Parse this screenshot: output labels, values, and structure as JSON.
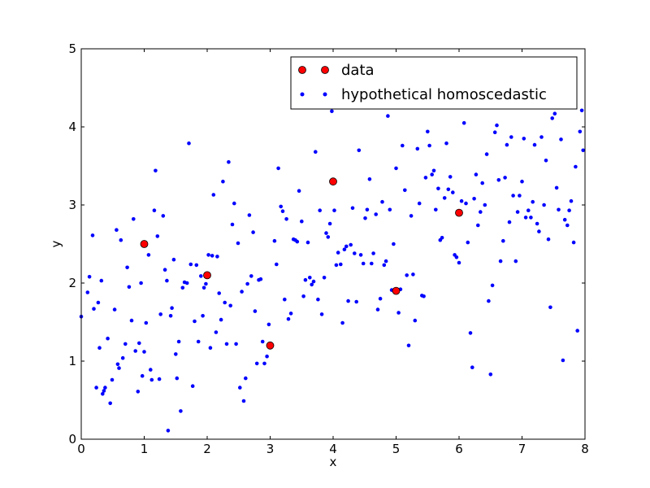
{
  "chart_data": {
    "type": "scatter",
    "xlabel": "x",
    "ylabel": "y",
    "xlim": [
      0,
      8
    ],
    "ylim": [
      0,
      5
    ],
    "xticks": [
      "0",
      "1",
      "2",
      "3",
      "4",
      "5",
      "6",
      "7",
      "8"
    ],
    "yticks": [
      "0",
      "1",
      "2",
      "3",
      "4",
      "5"
    ],
    "grid": false,
    "legend_position": "top-right",
    "series": [
      {
        "name": "data",
        "marker": "circle-large",
        "color": "#ff0000",
        "edge_color": "#000000",
        "points": [
          [
            1,
            2.5
          ],
          [
            2,
            2.1
          ],
          [
            3,
            1.2
          ],
          [
            4,
            3.3
          ],
          [
            5,
            1.9
          ],
          [
            6,
            2.9
          ]
        ]
      },
      {
        "name": "hypothetical homoscedastic",
        "marker": "circle-small",
        "color": "#0000ff",
        "points": [
          [
            0.0,
            1.57
          ],
          [
            0.1,
            1.88
          ],
          [
            0.13,
            2.08
          ],
          [
            0.18,
            2.61
          ],
          [
            0.2,
            1.67
          ],
          [
            0.24,
            0.66
          ],
          [
            0.27,
            1.75
          ],
          [
            0.29,
            1.17
          ],
          [
            0.32,
            2.03
          ],
          [
            0.34,
            0.58
          ],
          [
            0.36,
            0.62
          ],
          [
            0.38,
            0.66
          ],
          [
            0.42,
            1.29
          ],
          [
            0.46,
            0.46
          ],
          [
            0.49,
            0.76
          ],
          [
            0.53,
            1.66
          ],
          [
            0.56,
            2.68
          ],
          [
            0.58,
            0.96
          ],
          [
            0.6,
            0.91
          ],
          [
            0.63,
            2.55
          ],
          [
            0.66,
            1.04
          ],
          [
            0.7,
            1.22
          ],
          [
            0.73,
            2.2
          ],
          [
            0.76,
            1.95
          ],
          [
            0.8,
            1.52
          ],
          [
            0.83,
            2.82
          ],
          [
            0.86,
            1.13
          ],
          [
            0.9,
            0.61
          ],
          [
            0.92,
            1.23
          ],
          [
            0.95,
            2.0
          ],
          [
            0.97,
            0.81
          ],
          [
            1.0,
            1.12
          ],
          [
            1.03,
            1.49
          ],
          [
            1.07,
            2.36
          ],
          [
            1.1,
            0.89
          ],
          [
            1.12,
            0.76
          ],
          [
            1.16,
            2.93
          ],
          [
            1.18,
            3.44
          ],
          [
            1.21,
            2.6
          ],
          [
            1.24,
            0.77
          ],
          [
            1.26,
            1.6
          ],
          [
            1.3,
            2.86
          ],
          [
            1.33,
            2.17
          ],
          [
            1.36,
            2.03
          ],
          [
            1.38,
            0.11
          ],
          [
            1.42,
            1.58
          ],
          [
            1.44,
            1.68
          ],
          [
            1.47,
            2.3
          ],
          [
            1.5,
            1.09
          ],
          [
            1.52,
            0.78
          ],
          [
            1.55,
            1.25
          ],
          [
            1.58,
            0.36
          ],
          [
            1.61,
            1.94
          ],
          [
            1.64,
            2.01
          ],
          [
            1.68,
            2.0
          ],
          [
            1.71,
            3.79
          ],
          [
            1.74,
            2.24
          ],
          [
            1.77,
            0.68
          ],
          [
            1.8,
            1.51
          ],
          [
            1.83,
            2.23
          ],
          [
            1.86,
            1.25
          ],
          [
            1.9,
            2.09
          ],
          [
            1.93,
            1.58
          ],
          [
            1.95,
            1.94
          ],
          [
            1.98,
            1.99
          ],
          [
            2.02,
            2.36
          ],
          [
            2.05,
            1.17
          ],
          [
            2.08,
            2.35
          ],
          [
            2.1,
            3.13
          ],
          [
            2.14,
            1.37
          ],
          [
            2.16,
            2.34
          ],
          [
            2.19,
            1.87
          ],
          [
            2.22,
            1.53
          ],
          [
            2.25,
            3.3
          ],
          [
            2.28,
            1.75
          ],
          [
            2.31,
            1.22
          ],
          [
            2.34,
            3.55
          ],
          [
            2.37,
            1.71
          ],
          [
            2.4,
            2.75
          ],
          [
            2.43,
            3.02
          ],
          [
            2.46,
            1.22
          ],
          [
            2.49,
            2.51
          ],
          [
            2.52,
            0.66
          ],
          [
            2.55,
            1.89
          ],
          [
            2.58,
            0.49
          ],
          [
            2.61,
            0.78
          ],
          [
            2.64,
            1.99
          ],
          [
            2.67,
            2.87
          ],
          [
            2.7,
            2.09
          ],
          [
            2.73,
            2.65
          ],
          [
            2.76,
            1.64
          ],
          [
            2.79,
            0.97
          ],
          [
            2.82,
            2.04
          ],
          [
            2.85,
            2.05
          ],
          [
            2.88,
            1.25
          ],
          [
            2.91,
            0.97
          ],
          [
            2.95,
            1.06
          ],
          [
            2.98,
            1.47
          ],
          [
            3.0,
            1.21
          ],
          [
            3.03,
            1.2
          ],
          [
            3.07,
            2.54
          ],
          [
            3.1,
            2.24
          ],
          [
            3.13,
            3.47
          ],
          [
            3.17,
            2.98
          ],
          [
            3.2,
            2.92
          ],
          [
            3.23,
            1.79
          ],
          [
            3.26,
            2.82
          ],
          [
            3.29,
            1.54
          ],
          [
            3.33,
            1.61
          ],
          [
            3.37,
            2.56
          ],
          [
            3.4,
            2.55
          ],
          [
            3.43,
            2.53
          ],
          [
            3.46,
            3.18
          ],
          [
            3.5,
            2.79
          ],
          [
            3.53,
            1.83
          ],
          [
            3.56,
            2.04
          ],
          [
            3.6,
            2.52
          ],
          [
            3.63,
            2.07
          ],
          [
            3.66,
            1.98
          ],
          [
            3.69,
            2.02
          ],
          [
            3.72,
            3.68
          ],
          [
            3.76,
            1.79
          ],
          [
            3.79,
            2.93
          ],
          [
            3.82,
            1.6
          ],
          [
            3.86,
            2.07
          ],
          [
            3.89,
            2.64
          ],
          [
            3.92,
            2.59
          ],
          [
            3.95,
            2.76
          ],
          [
            3.98,
            4.2
          ],
          [
            4.02,
            2.93
          ],
          [
            4.05,
            2.23
          ],
          [
            4.08,
            2.39
          ],
          [
            4.12,
            2.24
          ],
          [
            4.15,
            1.49
          ],
          [
            4.18,
            2.43
          ],
          [
            4.21,
            2.47
          ],
          [
            4.24,
            1.77
          ],
          [
            4.28,
            2.49
          ],
          [
            4.31,
            2.96
          ],
          [
            4.34,
            2.38
          ],
          [
            4.37,
            1.76
          ],
          [
            4.41,
            3.7
          ],
          [
            4.44,
            2.36
          ],
          [
            4.48,
            2.25
          ],
          [
            4.51,
            2.83
          ],
          [
            4.54,
            2.94
          ],
          [
            4.58,
            3.33
          ],
          [
            4.61,
            2.25
          ],
          [
            4.64,
            2.38
          ],
          [
            4.68,
            2.88
          ],
          [
            4.71,
            1.66
          ],
          [
            4.75,
            1.8
          ],
          [
            4.78,
            3.04
          ],
          [
            4.81,
            2.23
          ],
          [
            4.84,
            2.28
          ],
          [
            4.87,
            4.14
          ],
          [
            4.9,
            2.94
          ],
          [
            4.93,
            1.91
          ],
          [
            4.96,
            2.5
          ],
          [
            5.0,
            3.47
          ],
          [
            5.04,
            1.62
          ],
          [
            5.07,
            1.92
          ],
          [
            5.1,
            3.76
          ],
          [
            5.14,
            3.19
          ],
          [
            5.17,
            2.1
          ],
          [
            5.2,
            1.2
          ],
          [
            5.24,
            2.86
          ],
          [
            5.27,
            2.11
          ],
          [
            5.3,
            1.52
          ],
          [
            5.34,
            3.72
          ],
          [
            5.37,
            3.02
          ],
          [
            5.41,
            1.84
          ],
          [
            5.44,
            1.83
          ],
          [
            5.47,
            3.35
          ],
          [
            5.5,
            3.94
          ],
          [
            5.53,
            3.76
          ],
          [
            5.57,
            3.39
          ],
          [
            5.6,
            3.44
          ],
          [
            5.63,
            2.94
          ],
          [
            5.67,
            3.21
          ],
          [
            5.7,
            2.55
          ],
          [
            5.73,
            2.58
          ],
          [
            5.77,
            3.09
          ],
          [
            5.8,
            3.79
          ],
          [
            5.83,
            3.2
          ],
          [
            5.86,
            3.36
          ],
          [
            5.9,
            3.16
          ],
          [
            5.93,
            2.36
          ],
          [
            5.96,
            2.33
          ],
          [
            6.0,
            2.26
          ],
          [
            6.04,
            3.05
          ],
          [
            6.08,
            4.05
          ],
          [
            6.11,
            3.02
          ],
          [
            6.14,
            2.52
          ],
          [
            6.18,
            1.36
          ],
          [
            6.21,
            0.92
          ],
          [
            6.24,
            3.08
          ],
          [
            6.27,
            3.39
          ],
          [
            6.3,
            2.74
          ],
          [
            6.34,
            2.91
          ],
          [
            6.37,
            3.28
          ],
          [
            6.41,
            3.0
          ],
          [
            6.44,
            3.65
          ],
          [
            6.47,
            1.77
          ],
          [
            6.5,
            0.83
          ],
          [
            6.53,
            1.97
          ],
          [
            6.57,
            3.93
          ],
          [
            6.6,
            4.02
          ],
          [
            6.63,
            3.32
          ],
          [
            6.66,
            2.28
          ],
          [
            6.7,
            2.54
          ],
          [
            6.73,
            3.35
          ],
          [
            6.76,
            3.77
          ],
          [
            6.8,
            2.78
          ],
          [
            6.83,
            3.87
          ],
          [
            6.86,
            3.12
          ],
          [
            6.9,
            2.28
          ],
          [
            6.93,
            2.91
          ],
          [
            6.96,
            3.12
          ],
          [
            7.0,
            3.3
          ],
          [
            7.03,
            3.85
          ],
          [
            7.06,
            2.84
          ],
          [
            7.1,
            2.93
          ],
          [
            7.14,
            2.84
          ],
          [
            7.17,
            3.04
          ],
          [
            7.2,
            3.77
          ],
          [
            7.24,
            2.76
          ],
          [
            7.27,
            2.66
          ],
          [
            7.31,
            3.87
          ],
          [
            7.35,
            3.0
          ],
          [
            7.38,
            3.57
          ],
          [
            7.42,
            2.56
          ],
          [
            7.45,
            1.69
          ],
          [
            7.48,
            4.11
          ],
          [
            7.52,
            4.17
          ],
          [
            7.55,
            3.22
          ],
          [
            7.58,
            2.94
          ],
          [
            7.62,
            3.84
          ],
          [
            7.65,
            1.01
          ],
          [
            7.68,
            2.81
          ],
          [
            7.72,
            2.74
          ],
          [
            7.75,
            2.93
          ],
          [
            7.78,
            3.05
          ],
          [
            7.82,
            2.52
          ],
          [
            7.85,
            3.49
          ],
          [
            7.88,
            1.39
          ],
          [
            7.92,
            3.94
          ],
          [
            7.95,
            4.21
          ],
          [
            7.97,
            3.7
          ]
        ]
      }
    ]
  }
}
